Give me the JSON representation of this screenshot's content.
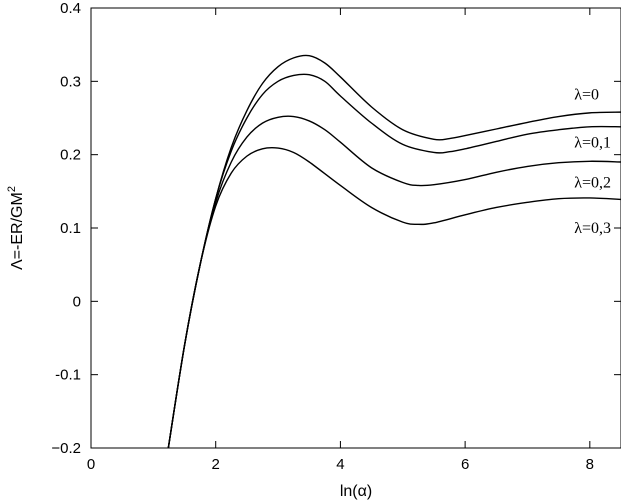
{
  "chart_data": {
    "type": "line",
    "title": "",
    "xlabel": "ln(α)",
    "ylabel_main": "Λ=-ER/GM",
    "ylabel_sup": "2",
    "xlim": [
      0,
      8.5
    ],
    "ylim": [
      -0.2,
      0.4
    ],
    "xticks": [
      0,
      2,
      4,
      6,
      8
    ],
    "xtick_labels": [
      "0",
      "2",
      "4",
      "6",
      "8"
    ],
    "yticks": [
      -0.2,
      -0.1,
      0,
      0.1,
      0.2,
      0.3,
      0.4
    ],
    "ytick_labels": [
      "−0.2",
      "-0.1",
      "0",
      "0.1",
      "0.2",
      "0.3",
      "0.4"
    ],
    "grid": false,
    "legend": "inline labels at right",
    "series": [
      {
        "name": "λ=0",
        "x": [
          1.24,
          1.5,
          1.75,
          2.0,
          2.25,
          2.5,
          2.75,
          3.0,
          3.25,
          3.5,
          3.75,
          4.0,
          4.5,
          5.0,
          5.5,
          5.75,
          6.0,
          6.5,
          7.0,
          7.5,
          8.0,
          8.5
        ],
        "y": [
          -0.2,
          -0.06,
          0.05,
          0.14,
          0.21,
          0.26,
          0.297,
          0.32,
          0.332,
          0.335,
          0.325,
          0.306,
          0.265,
          0.234,
          0.221,
          0.222,
          0.226,
          0.235,
          0.244,
          0.252,
          0.257,
          0.258
        ]
      },
      {
        "name": "λ=0,1",
        "x": [
          1.24,
          1.5,
          1.75,
          2.0,
          2.25,
          2.5,
          2.75,
          3.0,
          3.25,
          3.5,
          3.75,
          4.0,
          4.5,
          5.0,
          5.5,
          5.75,
          6.0,
          6.5,
          7.0,
          7.5,
          8.0,
          8.5
        ],
        "y": [
          -0.2,
          -0.06,
          0.05,
          0.14,
          0.205,
          0.25,
          0.282,
          0.3,
          0.308,
          0.309,
          0.3,
          0.28,
          0.243,
          0.214,
          0.203,
          0.204,
          0.208,
          0.218,
          0.228,
          0.234,
          0.238,
          0.238
        ]
      },
      {
        "name": "λ=0,2",
        "x": [
          1.24,
          1.5,
          1.75,
          2.0,
          2.25,
          2.5,
          2.75,
          3.0,
          3.25,
          3.5,
          3.75,
          4.0,
          4.5,
          5.0,
          5.25,
          5.5,
          6.0,
          6.5,
          7.0,
          7.5,
          8.0,
          8.5
        ],
        "y": [
          -0.2,
          -0.06,
          0.05,
          0.135,
          0.19,
          0.224,
          0.243,
          0.251,
          0.252,
          0.246,
          0.234,
          0.217,
          0.182,
          0.162,
          0.158,
          0.159,
          0.166,
          0.176,
          0.184,
          0.189,
          0.191,
          0.19
        ]
      },
      {
        "name": "λ=0,3",
        "x": [
          1.24,
          1.5,
          1.75,
          2.0,
          2.25,
          2.5,
          2.75,
          3.0,
          3.25,
          3.5,
          4.0,
          4.5,
          5.0,
          5.25,
          5.5,
          6.0,
          6.5,
          7.0,
          7.5,
          8.0,
          8.5
        ],
        "y": [
          -0.2,
          -0.06,
          0.05,
          0.13,
          0.175,
          0.198,
          0.208,
          0.209,
          0.203,
          0.19,
          0.158,
          0.128,
          0.108,
          0.105,
          0.107,
          0.118,
          0.128,
          0.135,
          0.14,
          0.141,
          0.139
        ]
      }
    ],
    "label_positions": [
      {
        "x": 7.75,
        "y": 0.275
      },
      {
        "x": 7.75,
        "y": 0.21
      },
      {
        "x": 7.75,
        "y": 0.155
      },
      {
        "x": 7.75,
        "y": 0.093
      }
    ]
  }
}
